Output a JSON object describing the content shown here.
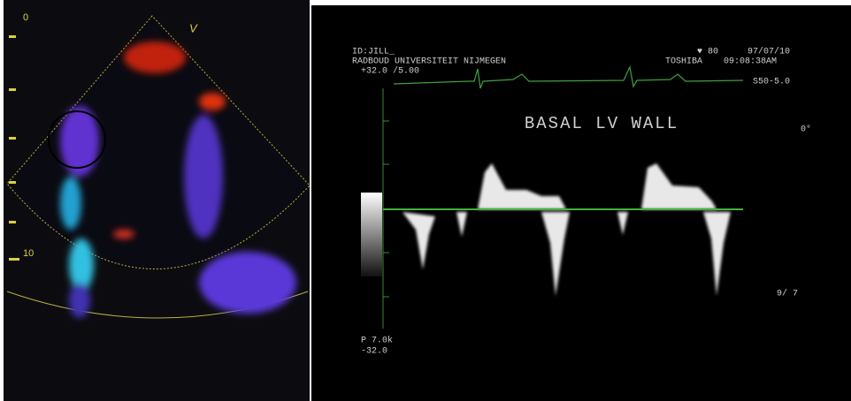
{
  "left_panel": {
    "depth_top": "0",
    "depth_mid": "10",
    "marker": "V"
  },
  "right_panel": {
    "header": {
      "id": "ID:JILL_",
      "heart_rate": "♥ 80",
      "date": "97/07/10",
      "institution": "RADBOUD UNIVERSITEIT NIJMEGEN",
      "vendor": "TOSHIBA",
      "time": "09:08:38AM"
    },
    "scale_top": "+32.0 /5.00",
    "probe": "S50-5.0",
    "title": "BASAL LV WALL",
    "angle": "0°",
    "frame": "9/ 7",
    "prf": "P 7.0k",
    "scale_bottom": "-32.0"
  }
}
